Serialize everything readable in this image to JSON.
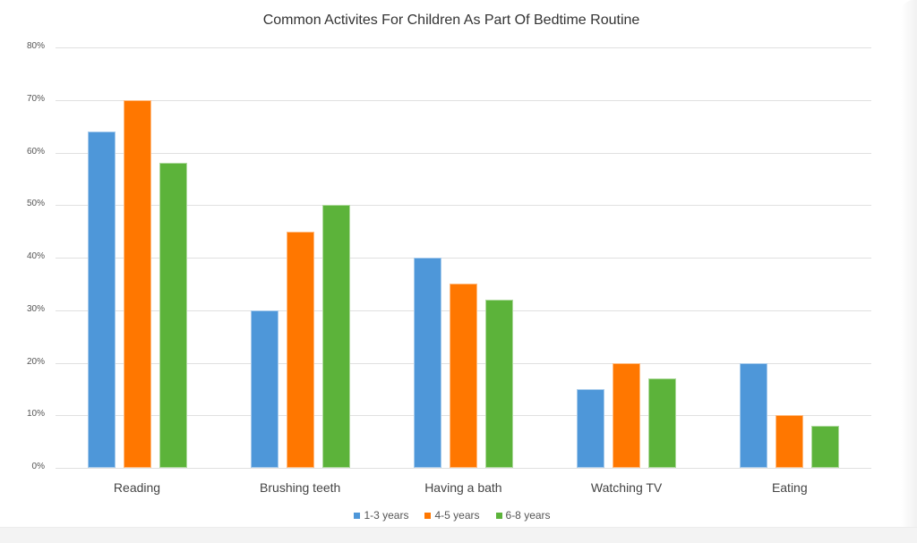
{
  "chart_data": {
    "type": "bar",
    "title": "Common Activites For Children As Part Of Bedtime Routine",
    "xlabel": "",
    "ylabel": "",
    "ylim": [
      0,
      80
    ],
    "yticks": [
      "0%",
      "10%",
      "20%",
      "30%",
      "40%",
      "50%",
      "60%",
      "70%",
      "80%"
    ],
    "grid": true,
    "legend_position": "bottom",
    "categories": [
      "Reading",
      "Brushing teeth",
      "Having a bath",
      "Watching TV",
      "Eating"
    ],
    "series": [
      {
        "name": "1-3 years",
        "color": "#4e97d9",
        "values": [
          64,
          30,
          40,
          15,
          20
        ]
      },
      {
        "name": "4-5 years",
        "color": "#ff7700",
        "values": [
          70,
          45,
          35,
          20,
          10
        ]
      },
      {
        "name": "6-8 years",
        "color": "#5cb33a",
        "values": [
          58,
          50,
          32,
          17,
          8
        ]
      }
    ]
  }
}
